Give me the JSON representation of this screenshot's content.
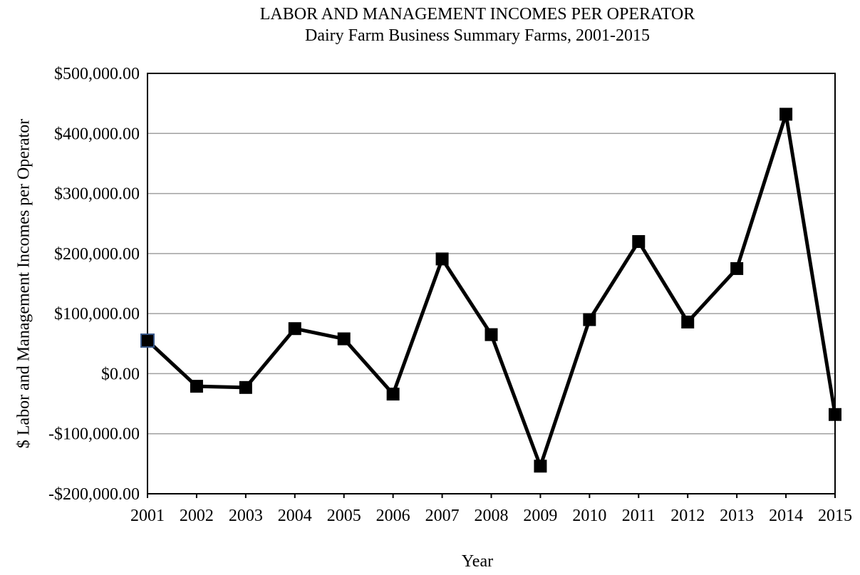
{
  "chart_data": {
    "type": "line",
    "title": "LABOR AND MANAGEMENT INCOMES PER OPERATOR",
    "subtitle": "Dairy Farm Business Summary Farms, 2001-2015",
    "xlabel": "Year",
    "ylabel": "$ Labor and Management Incomes per Operator",
    "x": [
      "2001",
      "2002",
      "2003",
      "2004",
      "2005",
      "2006",
      "2007",
      "2008",
      "2009",
      "2010",
      "2011",
      "2012",
      "2013",
      "2014",
      "2015"
    ],
    "series": [
      {
        "values": [
          55000,
          -21000,
          -23000,
          75000,
          58000,
          -34000,
          191000,
          65000,
          -154000,
          90000,
          220000,
          86000,
          175000,
          432000,
          -68000
        ]
      }
    ],
    "ylim": [
      -200000,
      500000
    ],
    "yticks": [
      500000,
      400000,
      300000,
      200000,
      100000,
      0,
      -100000,
      -200000
    ],
    "ytick_labels": [
      "$500,000.00",
      "$400,000.00",
      "$300,000.00",
      "$200,000.00",
      "$100,000.00",
      "$0.00",
      "-$100,000.00",
      "-$200,000.00"
    ],
    "grid": true,
    "line_color": "#000000",
    "marker_color": "#000000",
    "first_marker_edge_color": "#3a5a8c",
    "grid_color": "#a0a0a0"
  }
}
